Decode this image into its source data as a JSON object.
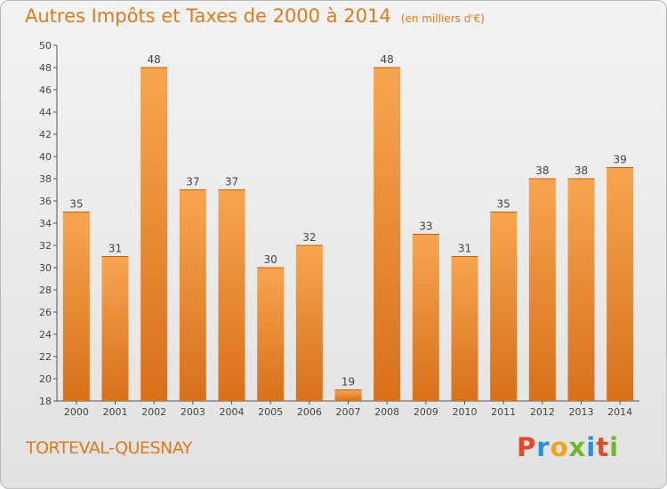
{
  "title": "Autres Impôts et Taxes de 2000 à 2014",
  "subtitle": "(en milliers d'€)",
  "commune": "TORTEVAL-QUESNAY",
  "brand": {
    "letters": [
      "P",
      "r",
      "o",
      "x",
      "i",
      "t",
      "i"
    ],
    "colors": [
      "#e4492b",
      "#2f8fd6",
      "#f4a31e",
      "#72b62e",
      "#2f8fd6",
      "#e4492b",
      "#72b62e"
    ]
  },
  "colors": {
    "bar_light": "#f8a54f",
    "bar_dark": "#d9701a",
    "text": "#e07a1e"
  },
  "chart_data": {
    "type": "bar",
    "categories": [
      "2000",
      "2001",
      "2002",
      "2003",
      "2004",
      "2005",
      "2006",
      "2007",
      "2008",
      "2009",
      "2010",
      "2011",
      "2012",
      "2013",
      "2014"
    ],
    "values": [
      35,
      31,
      48,
      37,
      37,
      30,
      32,
      19,
      48,
      33,
      31,
      35,
      38,
      38,
      39
    ],
    "ylim": [
      18,
      50
    ],
    "yticks": [
      18,
      20,
      22,
      24,
      26,
      28,
      30,
      32,
      34,
      36,
      38,
      40,
      42,
      44,
      46,
      48,
      50
    ],
    "grid": false,
    "data_labels": true
  }
}
